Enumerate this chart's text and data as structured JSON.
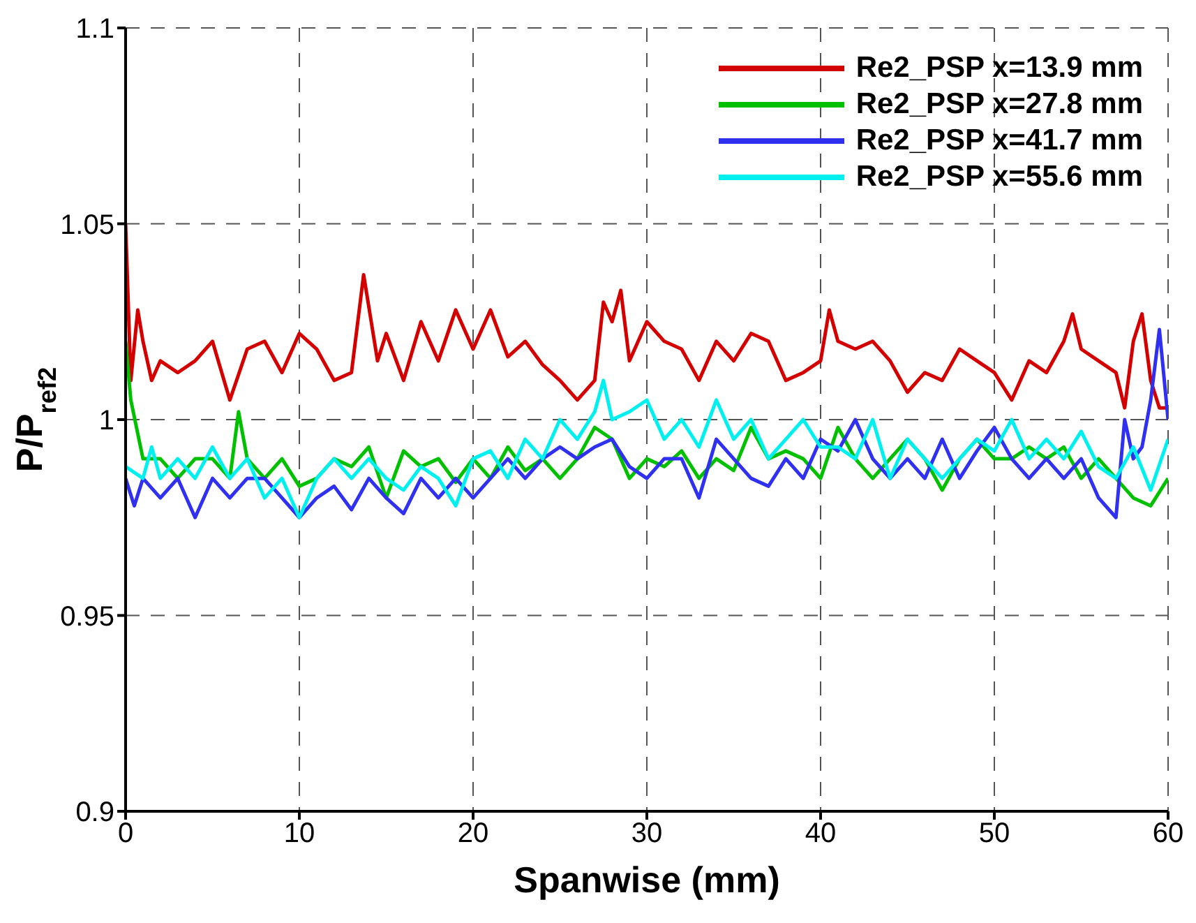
{
  "chart_data": {
    "type": "line",
    "xlabel": "Spanwise (mm)",
    "ylabel": "P/P$_{ref2}$",
    "xlim": [
      0,
      60
    ],
    "xticks": [
      0,
      10,
      20,
      30,
      40,
      50,
      60
    ],
    "ylim": [
      0.9,
      1.1
    ],
    "yticks": [
      0.9,
      0.95,
      1,
      1.05,
      1.1
    ],
    "grid": true,
    "legend": "top right",
    "marker": "none",
    "line_style": "solid",
    "series": [
      {
        "name": "Re2_PSP x=13.9 mm",
        "color": "#d40000",
        "x": [
          0,
          0.3,
          0.7,
          1,
          1.5,
          2,
          3,
          4,
          5,
          6,
          7,
          8,
          9,
          10,
          11,
          12,
          13,
          13.7,
          14.5,
          15,
          16,
          17,
          18,
          19,
          20,
          21,
          22,
          23,
          24,
          25,
          26,
          27,
          27.5,
          28,
          28.5,
          29,
          30,
          31,
          32,
          33,
          34,
          35,
          36,
          37,
          38,
          39,
          40,
          40.5,
          41,
          42,
          43,
          44,
          45,
          46,
          47,
          48,
          49,
          50,
          51,
          52,
          53,
          54,
          54.5,
          55,
          56,
          57,
          57.5,
          58,
          58.5,
          59,
          59.5,
          60
        ],
        "values": [
          1.05,
          1.01,
          1.028,
          1.02,
          1.01,
          1.015,
          1.012,
          1.015,
          1.02,
          1.005,
          1.018,
          1.02,
          1.012,
          1.022,
          1.018,
          1.01,
          1.012,
          1.037,
          1.015,
          1.022,
          1.01,
          1.025,
          1.015,
          1.028,
          1.018,
          1.028,
          1.016,
          1.02,
          1.014,
          1.01,
          1.005,
          1.01,
          1.03,
          1.025,
          1.033,
          1.015,
          1.025,
          1.02,
          1.018,
          1.01,
          1.02,
          1.015,
          1.022,
          1.02,
          1.01,
          1.012,
          1.015,
          1.028,
          1.02,
          1.018,
          1.02,
          1.015,
          1.007,
          1.012,
          1.01,
          1.018,
          1.015,
          1.012,
          1.005,
          1.015,
          1.012,
          1.02,
          1.027,
          1.018,
          1.015,
          1.012,
          1.003,
          1.02,
          1.027,
          1.01,
          1.003,
          1.003
        ]
      },
      {
        "name": "Re2_PSP x=27.8 mm",
        "color": "#00c000",
        "x": [
          0,
          0.3,
          1,
          2,
          3,
          4,
          5,
          6,
          6.5,
          7,
          8,
          9,
          10,
          11,
          12,
          13,
          14,
          15,
          16,
          17,
          18,
          19,
          20,
          21,
          22,
          23,
          24,
          25,
          26,
          27,
          28,
          29,
          30,
          31,
          32,
          33,
          34,
          35,
          36,
          37,
          38,
          39,
          40,
          41,
          42,
          43,
          44,
          45,
          46,
          47,
          48,
          49,
          50,
          51,
          52,
          53,
          54,
          55,
          56,
          57,
          58,
          59,
          60
        ],
        "values": [
          1.02,
          1.005,
          0.99,
          0.99,
          0.985,
          0.99,
          0.99,
          0.985,
          1.002,
          0.99,
          0.985,
          0.99,
          0.983,
          0.985,
          0.99,
          0.988,
          0.993,
          0.98,
          0.992,
          0.988,
          0.99,
          0.984,
          0.99,
          0.985,
          0.993,
          0.987,
          0.99,
          0.985,
          0.99,
          0.998,
          0.995,
          0.985,
          0.99,
          0.988,
          0.992,
          0.985,
          0.99,
          0.987,
          0.998,
          0.99,
          0.992,
          0.99,
          0.985,
          0.998,
          0.99,
          0.985,
          0.99,
          0.995,
          0.99,
          0.982,
          0.99,
          0.995,
          0.99,
          0.99,
          0.993,
          0.99,
          0.993,
          0.985,
          0.99,
          0.985,
          0.98,
          0.978,
          0.985
        ]
      },
      {
        "name": "Re2_PSP x=41.7 mm",
        "color": "#3030f0",
        "x": [
          0,
          0.5,
          1,
          2,
          3,
          4,
          5,
          6,
          7,
          8,
          9,
          10,
          11,
          12,
          13,
          14,
          15,
          16,
          17,
          18,
          19,
          20,
          21,
          22,
          23,
          24,
          25,
          26,
          27,
          28,
          29,
          30,
          31,
          32,
          33,
          34,
          35,
          36,
          37,
          38,
          39,
          40,
          41,
          42,
          43,
          44,
          45,
          46,
          47,
          48,
          49,
          50,
          51,
          52,
          53,
          54,
          55,
          56,
          57,
          57.5,
          58,
          58.5,
          59,
          59.5,
          60
        ],
        "values": [
          0.985,
          0.978,
          0.985,
          0.98,
          0.985,
          0.975,
          0.985,
          0.98,
          0.985,
          0.985,
          0.98,
          0.975,
          0.98,
          0.983,
          0.977,
          0.985,
          0.98,
          0.976,
          0.985,
          0.98,
          0.985,
          0.98,
          0.985,
          0.99,
          0.985,
          0.99,
          0.993,
          0.99,
          0.993,
          0.995,
          0.988,
          0.985,
          0.99,
          0.99,
          0.98,
          0.995,
          0.99,
          0.985,
          0.983,
          0.99,
          0.985,
          0.995,
          0.992,
          1.0,
          0.99,
          0.985,
          0.99,
          0.985,
          0.995,
          0.985,
          0.992,
          0.998,
          0.99,
          0.985,
          0.99,
          0.985,
          0.99,
          0.98,
          0.975,
          1.0,
          0.99,
          0.993,
          1.005,
          1.023,
          1.0
        ]
      },
      {
        "name": "Re2_PSP x=55.6 mm",
        "color": "#00f0f0",
        "x": [
          0,
          1,
          1.5,
          2,
          3,
          4,
          5,
          6,
          7,
          8,
          9,
          10,
          11,
          12,
          13,
          14,
          15,
          16,
          17,
          18,
          19,
          20,
          21,
          22,
          23,
          24,
          25,
          26,
          27,
          27.5,
          28,
          29,
          30,
          31,
          32,
          33,
          34,
          35,
          36,
          37,
          38,
          39,
          40,
          41,
          42,
          43,
          44,
          45,
          46,
          47,
          48,
          49,
          50,
          51,
          52,
          53,
          54,
          55,
          56,
          57,
          58,
          59,
          60
        ],
        "values": [
          0.988,
          0.985,
          0.993,
          0.985,
          0.99,
          0.985,
          0.993,
          0.985,
          0.99,
          0.98,
          0.985,
          0.975,
          0.985,
          0.99,
          0.985,
          0.99,
          0.985,
          0.982,
          0.988,
          0.985,
          0.978,
          0.99,
          0.992,
          0.985,
          0.995,
          0.99,
          1.0,
          0.995,
          1.002,
          1.01,
          1.0,
          1.002,
          1.005,
          0.995,
          1.0,
          0.993,
          1.005,
          0.995,
          1.0,
          0.99,
          0.995,
          1.0,
          0.993,
          0.993,
          0.99,
          1.0,
          0.985,
          0.995,
          0.99,
          0.985,
          0.99,
          0.995,
          0.992,
          1.0,
          0.99,
          0.995,
          0.99,
          0.997,
          0.988,
          0.985,
          0.993,
          0.982,
          0.995
        ]
      }
    ]
  }
}
